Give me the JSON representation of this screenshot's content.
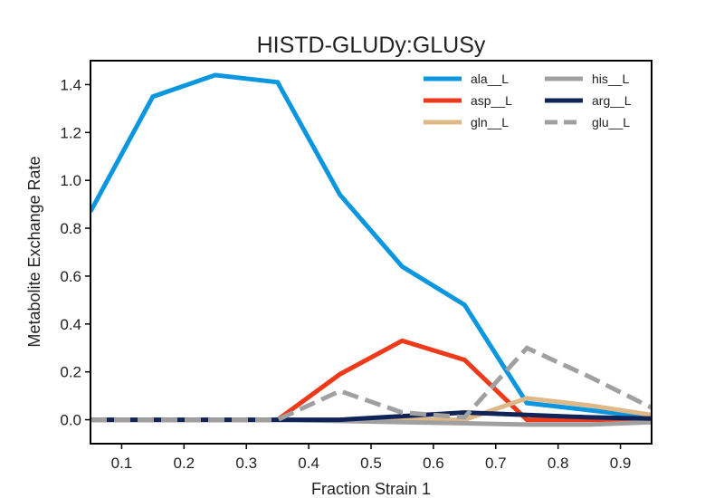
{
  "chart_data": {
    "type": "line",
    "title": "HISTD-GLUDy:GLUSy",
    "xlabel": "Fraction Strain 1",
    "ylabel": "Metabolite Exchange Rate",
    "xlim": [
      0.05,
      0.95
    ],
    "ylim": [
      -0.1,
      1.5
    ],
    "xticks": [
      "0.1",
      "0.2",
      "0.3",
      "0.4",
      "0.5",
      "0.6",
      "0.7",
      "0.8",
      "0.9"
    ],
    "yticks": [
      "0.0",
      "0.2",
      "0.4",
      "0.6",
      "0.8",
      "1.0",
      "1.2",
      "1.4"
    ],
    "grid": false,
    "legend_position": "upper-right",
    "x": [
      0.05,
      0.15,
      0.25,
      0.35,
      0.45,
      0.55,
      0.65,
      0.75,
      0.85,
      0.95
    ],
    "series": [
      {
        "name": "ala__L",
        "color": "#0b96e0",
        "dash": "solid",
        "values": [
          0.87,
          1.35,
          1.44,
          1.41,
          0.94,
          0.64,
          0.48,
          0.07,
          0.04,
          0.01
        ]
      },
      {
        "name": "asp__L",
        "color": "#ee3a1a",
        "dash": "solid",
        "values": [
          0.0,
          0.0,
          0.0,
          0.0,
          0.19,
          0.33,
          0.25,
          0.0,
          0.0,
          0.0
        ]
      },
      {
        "name": "gln__L",
        "color": "#deb887",
        "dash": "solid",
        "values": [
          0.0,
          0.0,
          0.0,
          0.0,
          0.0,
          0.0,
          0.0,
          0.09,
          0.06,
          0.02
        ]
      },
      {
        "name": "his__L",
        "color": "#a0a0a0",
        "dash": "solid",
        "values": [
          0.0,
          0.0,
          0.0,
          0.0,
          -0.005,
          -0.01,
          -0.015,
          -0.02,
          -0.02,
          -0.01
        ]
      },
      {
        "name": "arg__L",
        "color": "#102458",
        "dash": "solid",
        "values": [
          0.0,
          0.0,
          0.0,
          0.0,
          0.0,
          0.015,
          0.03,
          0.02,
          0.01,
          0.005
        ]
      },
      {
        "name": "glu__L",
        "color": "#a0a0a0",
        "dash": "dashed",
        "values": [
          0.0,
          0.0,
          0.0,
          0.0,
          0.12,
          0.03,
          0.01,
          0.3,
          0.18,
          0.05
        ]
      }
    ]
  }
}
